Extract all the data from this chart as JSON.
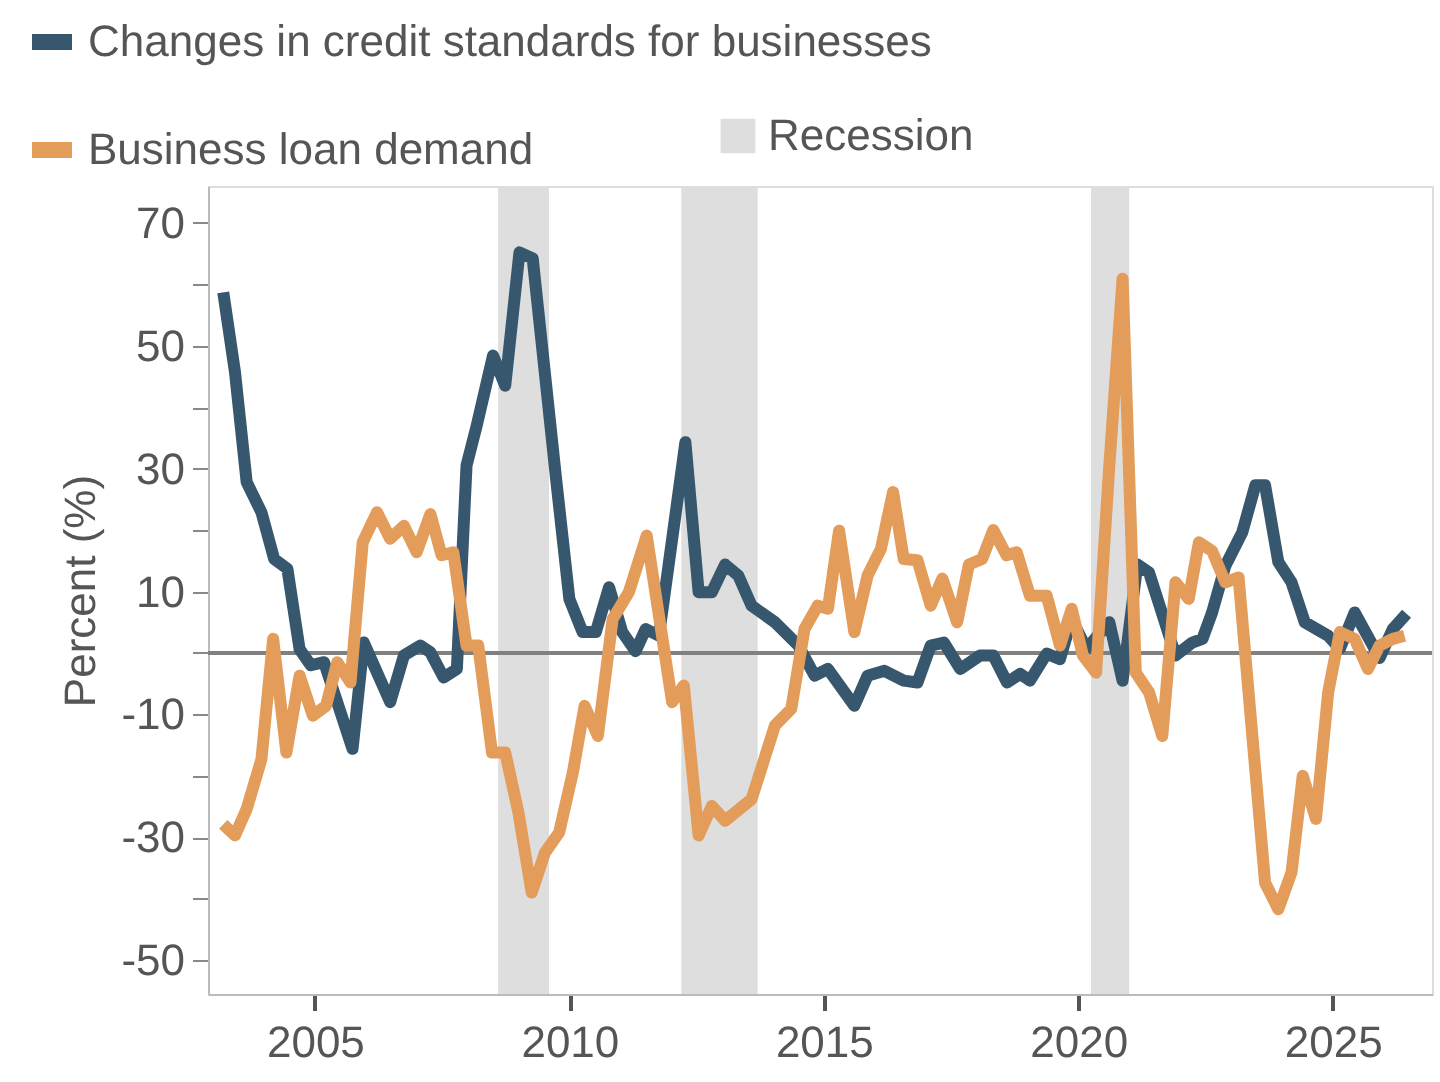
{
  "chart_data": {
    "type": "line",
    "ylabel": "Percent (%)",
    "xlim": [
      2002.9,
      2026.95
    ],
    "xticks": [
      2005,
      2010,
      2015,
      2020,
      2025
    ],
    "ylim": [
      -55.5,
      76
    ],
    "yticks": [
      70,
      {
        "value": 60,
        "label": null
      },
      50,
      {
        "value": 40,
        "label": null
      },
      30,
      {
        "value": 20,
        "label": null
      },
      10,
      {
        "value": 0,
        "label": null
      },
      -10,
      {
        "value": -20,
        "label": null
      },
      -30,
      {
        "value": -40,
        "label": null
      },
      -50
    ],
    "grid": false,
    "legend": "top left",
    "line_style": "solid",
    "marker": "none",
    "series": [
      {
        "name": "Changes in credit standards for businesses",
        "color": "#36576e",
        "x": [
          2003.2,
          2003.43,
          2003.66,
          2003.95,
          2004.2,
          2004.46,
          2004.7,
          2004.92,
          2005.18,
          2005.74,
          2005.96,
          2006.48,
          2006.75,
          2007.07,
          2007.27,
          2007.53,
          2007.79,
          2007.98,
          2008.18,
          2008.5,
          2008.74,
          2009.02,
          2009.28,
          2009.74,
          2010.0,
          2010.26,
          2010.52,
          2010.78,
          2011.04,
          2011.3,
          2011.5,
          2011.76,
          2012.28,
          2012.54,
          2012.8,
          2013.06,
          2013.32,
          2013.58,
          2014.04,
          2014.5,
          2014.82,
          2015.08,
          2015.6,
          2015.86,
          2016.19,
          2016.57,
          2016.84,
          2017.1,
          2017.36,
          2017.68,
          2018.07,
          2018.33,
          2018.6,
          2018.86,
          2019.05,
          2019.38,
          2019.64,
          2019.87,
          2020.16,
          2020.61,
          2020.87,
          2021.16,
          2021.39,
          2021.91,
          2022.24,
          2022.44,
          2022.63,
          2022.89,
          2023.22,
          2023.48,
          2023.67,
          2023.93,
          2024.19,
          2024.45,
          2024.91,
          2025.14,
          2025.43,
          2025.92,
          2026.18,
          2026.45
        ],
        "values": [
          58.7,
          45.7,
          27.8,
          22.9,
          15.3,
          13.7,
          0.6,
          -2,
          -1.5,
          -15.6,
          1.7,
          -8,
          -0.4,
          1.2,
          0.1,
          -4,
          -2.6,
          30.5,
          37,
          48.4,
          43.5,
          65.2,
          64.2,
          28.3,
          8.8,
          3.4,
          3.4,
          10.7,
          3.4,
          0.3,
          3.9,
          2.8,
          34.3,
          9.9,
          9.9,
          14.4,
          12.6,
          7.7,
          5.0,
          1.2,
          -3.7,
          -2.6,
          -8.6,
          -3.7,
          -2.9,
          -4.5,
          -4.8,
          1.2,
          1.7,
          -2.6,
          -0.4,
          -0.4,
          -4.8,
          -3.4,
          -4.5,
          -0.1,
          -1,
          5.5,
          0.7,
          5.0,
          -4.5,
          14.4,
          13.1,
          -0.4,
          1.7,
          2.3,
          6.6,
          14.2,
          19.6,
          27.3,
          27.3,
          14.8,
          11.5,
          5.0,
          2.8,
          0.7,
          6.6,
          -0.8,
          3.9,
          6.4
        ]
      },
      {
        "name": "Business loan demand",
        "color": "#e39c5a",
        "x": [
          2003.2,
          2003.43,
          2003.66,
          2003.95,
          2004.18,
          2004.44,
          2004.7,
          2004.96,
          2005.22,
          2005.44,
          2005.7,
          2005.94,
          2006.22,
          2006.48,
          2006.75,
          2007.0,
          2007.27,
          2007.49,
          2007.72,
          2007.98,
          2008.21,
          2008.48,
          2008.74,
          2009.0,
          2009.26,
          2009.52,
          2009.8,
          2010.07,
          2010.3,
          2010.56,
          2010.85,
          2011.17,
          2011.52,
          2012.02,
          2012.25,
          2012.54,
          2012.8,
          2013.06,
          2013.58,
          2014.04,
          2014.36,
          2014.62,
          2014.88,
          2015.08,
          2015.3,
          2015.6,
          2015.86,
          2016.12,
          2016.36,
          2016.57,
          2016.84,
          2017.1,
          2017.33,
          2017.62,
          2017.85,
          2018.11,
          2018.33,
          2018.59,
          2018.79,
          2019.05,
          2019.38,
          2019.64,
          2019.87,
          2020.09,
          2020.35,
          2020.61,
          2020.87,
          2021.13,
          2021.39,
          2021.65,
          2021.91,
          2022.17,
          2022.37,
          2022.63,
          2022.89,
          2023.15,
          2023.67,
          2023.93,
          2024.19,
          2024.41,
          2024.67,
          2024.91,
          2025.14,
          2025.43,
          2025.69,
          2025.92,
          2026.18,
          2026.41
        ],
        "values": [
          -27.9,
          -29.7,
          -25.4,
          -17.3,
          2.3,
          -16.2,
          -3.7,
          -10.2,
          -8.6,
          -1.5,
          -4.8,
          18,
          22.9,
          18.6,
          20.7,
          16.4,
          22.6,
          15.9,
          16.4,
          1.2,
          1.2,
          -16.2,
          -16.2,
          -26,
          -39,
          -32.5,
          -29.2,
          -19.4,
          -8.6,
          -13.5,
          5.5,
          9.9,
          19.1,
          -8,
          -5.3,
          -29.7,
          -24.9,
          -27.3,
          -23.8,
          -11.8,
          -9.1,
          3.9,
          7.7,
          7.2,
          19.9,
          3.4,
          12.6,
          16.9,
          26.2,
          15.3,
          15.1,
          7.7,
          12.1,
          5.0,
          14.4,
          15.3,
          20,
          15.9,
          16.4,
          9.3,
          9.3,
          1.2,
          7.2,
          -0.4,
          -3.2,
          30.5,
          60.9,
          -3.2,
          -6.4,
          -13.5,
          11.5,
          8.8,
          18,
          16.6,
          11.5,
          12.3,
          -37.4,
          -41.7,
          -35.7,
          -20,
          -27,
          -6.4,
          3.4,
          2.3,
          -2.6,
          1.2,
          2.3,
          2.8
        ]
      }
    ],
    "bands": [
      {
        "axis": "x",
        "from": 2008.6,
        "to": 2009.6,
        "label": "Recession",
        "color": "#dedede"
      },
      {
        "axis": "x",
        "from": 2012.2,
        "to": 2013.7,
        "color": "#dedede"
      },
      {
        "axis": "x",
        "from": 2020.25,
        "to": 2021.0,
        "color": "#dedede"
      }
    ],
    "ref_lines": [
      {
        "axis": "y",
        "value": 0,
        "color": "#808080"
      }
    ]
  }
}
